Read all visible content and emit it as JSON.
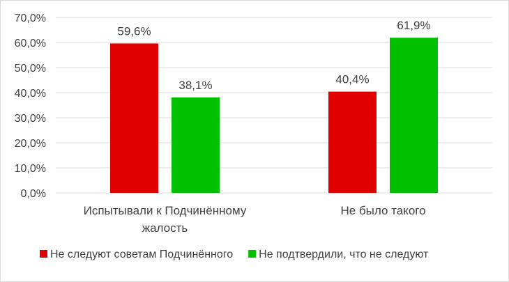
{
  "chart_data": {
    "type": "bar",
    "categories": [
      [
        "Испытывали к Подчинённому",
        "жалость"
      ],
      [
        "Не было такого"
      ]
    ],
    "series": [
      {
        "name": "Не следуют советам Подчинённого",
        "color": "#e00000",
        "values": [
          59.6,
          40.4
        ],
        "labels": [
          "59,6%",
          "40,4%"
        ]
      },
      {
        "name": "Не подтвердили, что не следуют",
        "color": "#00c000",
        "values": [
          38.1,
          61.9
        ],
        "labels": [
          "38,1%",
          "61,9%"
        ]
      }
    ],
    "ylim": [
      0,
      70
    ],
    "yticks": [
      0,
      10,
      20,
      30,
      40,
      50,
      60,
      70
    ],
    "ytick_labels": [
      "0,0%",
      "10,0%",
      "20,0%",
      "30,0%",
      "40,0%",
      "50,0%",
      "60,0%",
      "70,0%"
    ],
    "grid": true,
    "legend": "bottom",
    "gridline_color": "#d9d9d9"
  }
}
